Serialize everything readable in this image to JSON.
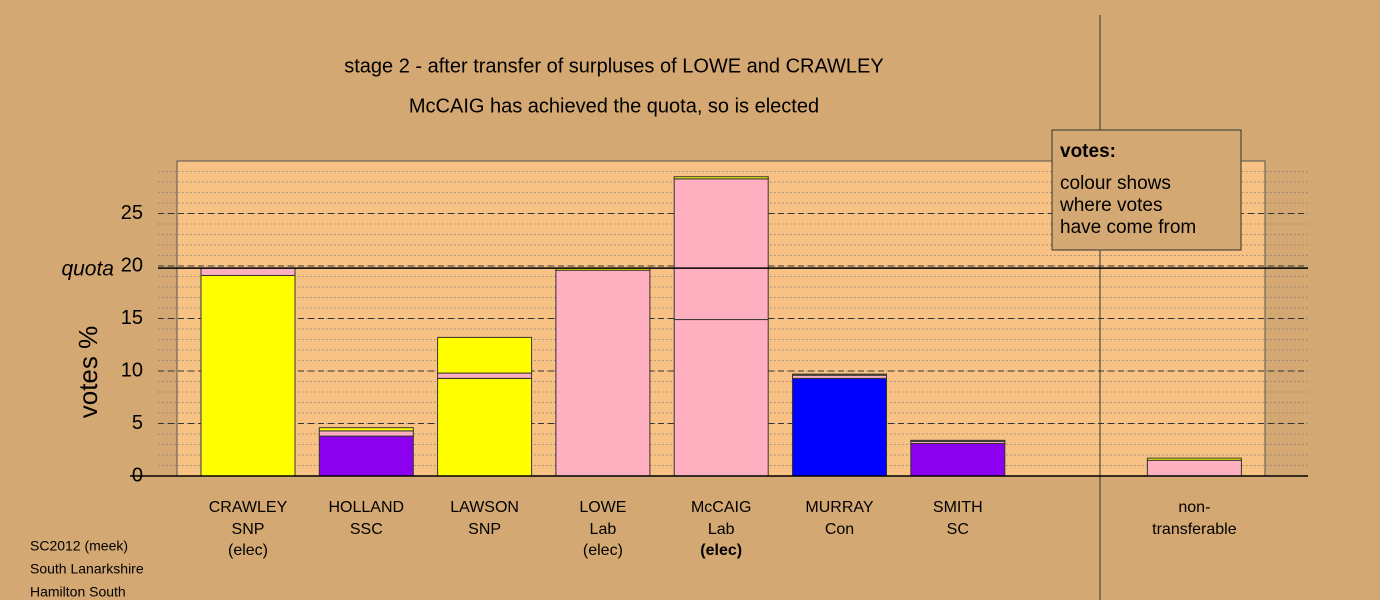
{
  "chart_data": {
    "type": "stacked-bar",
    "title": "stage 2 - after transfer of surpluses of LOWE and CRAWLEY",
    "subtitle": "McCAIG has achieved the quota, so is elected",
    "y_label": "votes %",
    "categories": [
      "CRAWLEY",
      "HOLLAND",
      "LAWSON",
      "LOWE",
      "McCAIG",
      "MURRAY",
      "SMITH",
      "non-"
    ],
    "parties": [
      "SNP",
      "SSC",
      "SNP",
      "Lab",
      "Lab",
      "Con",
      "SC",
      "transferable"
    ],
    "status": [
      "(elec)",
      null,
      null,
      "(elec)",
      "(elec)",
      null,
      null,
      null
    ],
    "bold_status_index": 4,
    "series": [
      {
        "colors": [
          "#ffff00",
          "#8b00ee",
          "#ffff00",
          "#ffb0c0",
          "#ffb0c0",
          "#0000ff",
          "#8b00ee",
          "#ffb0c0"
        ],
        "values": [
          19.1,
          3.8,
          9.3,
          19.6,
          14.9,
          9.3,
          3.1,
          0
        ]
      },
      {
        "color": "#ffb0c0",
        "values": [
          0.7,
          0.5,
          0.5,
          0,
          13.4,
          0.3,
          0.2,
          1.5
        ]
      },
      {
        "color": "#ffff00",
        "values": [
          0,
          0.3,
          3.4,
          0.2,
          0.2,
          0.1,
          0.1,
          0.2
        ]
      }
    ],
    "ylim": [
      0,
      30
    ],
    "yticks": [
      0,
      5,
      10,
      15,
      20,
      25
    ],
    "minor_grid_step": 1,
    "quota": 19.8,
    "quota_label": "quota",
    "legend": {
      "title": "votes:",
      "lines": [
        "colour shows",
        "where votes",
        "have come from"
      ]
    },
    "footer": [
      "SC2012 (meek)",
      "South Lanarkshire",
      "Hamilton South"
    ]
  }
}
